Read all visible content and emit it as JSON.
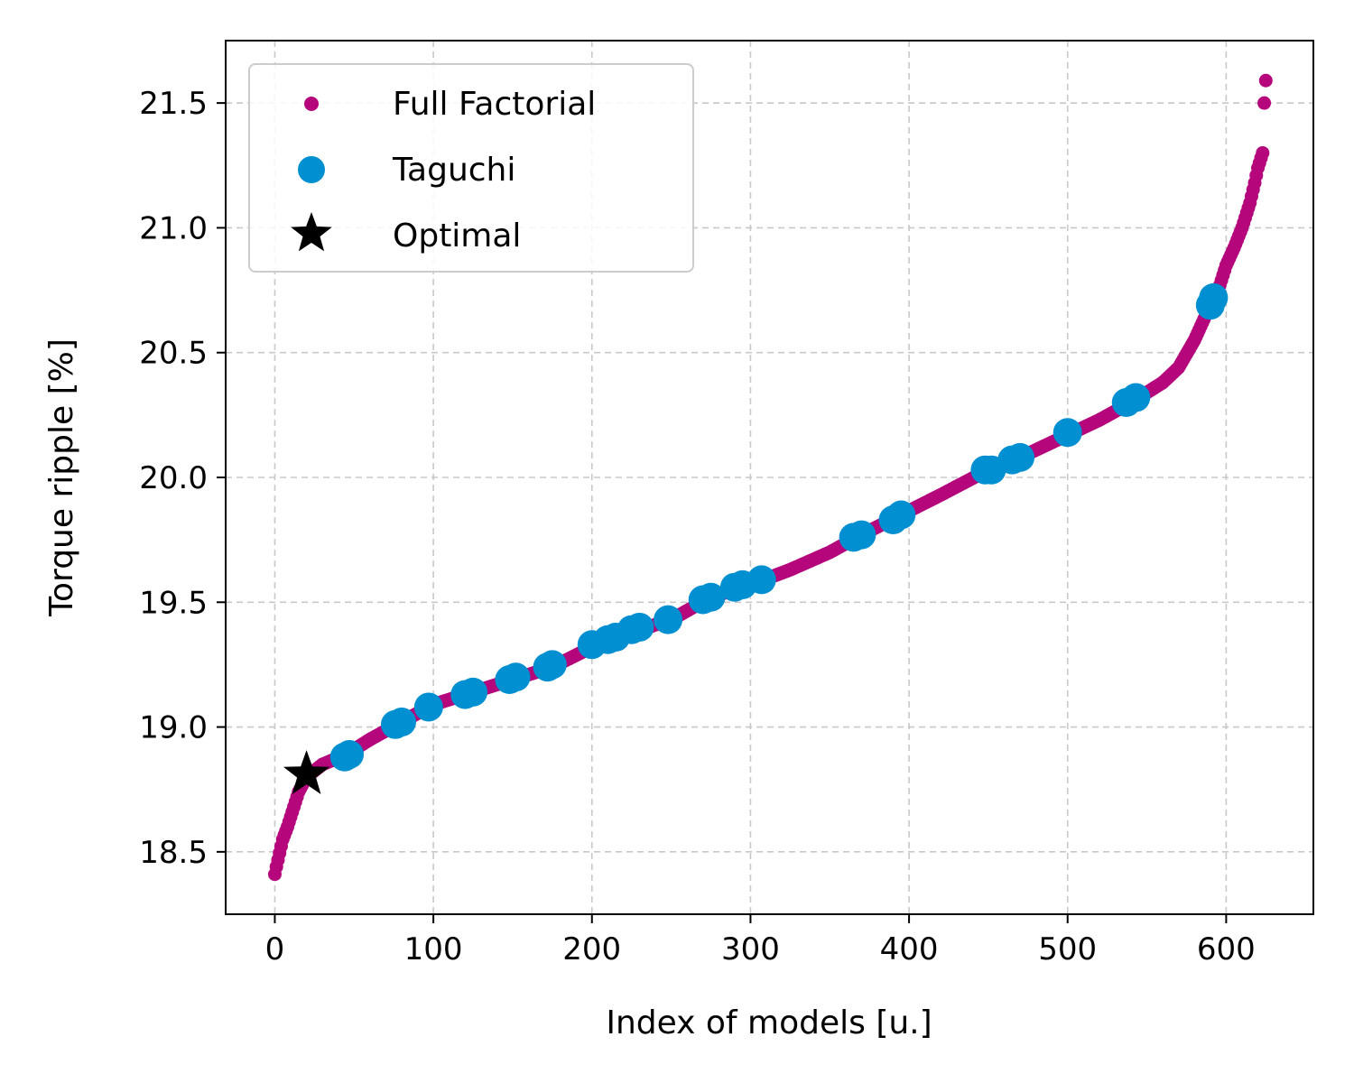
{
  "chart_data": {
    "type": "scatter",
    "xlabel": "Index of models [u.]",
    "ylabel": "Torque ripple [%]",
    "xlim": [
      -31,
      655
    ],
    "ylim": [
      18.25,
      21.75
    ],
    "xticks": [
      0,
      100,
      200,
      300,
      400,
      500,
      600
    ],
    "yticks": [
      18.5,
      19.0,
      19.5,
      20.0,
      20.5,
      21.0,
      21.5
    ],
    "ytick_labels": [
      "18.5",
      "19.0",
      "19.5",
      "20.0",
      "20.5",
      "21.0",
      "21.5"
    ],
    "grid": true,
    "legend_position": "top-left",
    "n_models": 625,
    "full_factorial_curve": [
      [
        0,
        18.41
      ],
      [
        1,
        18.44
      ],
      [
        5,
        18.55
      ],
      [
        8,
        18.6
      ],
      [
        12,
        18.68
      ],
      [
        15,
        18.74
      ],
      [
        20,
        18.8
      ],
      [
        30,
        18.85
      ],
      [
        45,
        18.89
      ],
      [
        60,
        18.95
      ],
      [
        80,
        19.02
      ],
      [
        100,
        19.09
      ],
      [
        125,
        19.14
      ],
      [
        150,
        19.19
      ],
      [
        175,
        19.24
      ],
      [
        200,
        19.32
      ],
      [
        220,
        19.36
      ],
      [
        240,
        19.41
      ],
      [
        250,
        19.43
      ],
      [
        275,
        19.52
      ],
      [
        300,
        19.57
      ],
      [
        325,
        19.63
      ],
      [
        350,
        19.7
      ],
      [
        370,
        19.77
      ],
      [
        395,
        19.85
      ],
      [
        420,
        19.93
      ],
      [
        450,
        20.03
      ],
      [
        470,
        20.08
      ],
      [
        500,
        20.17
      ],
      [
        520,
        20.23
      ],
      [
        540,
        20.3
      ],
      [
        560,
        20.38
      ],
      [
        570,
        20.44
      ],
      [
        580,
        20.55
      ],
      [
        590,
        20.69
      ],
      [
        595,
        20.75
      ],
      [
        600,
        20.85
      ],
      [
        605,
        20.92
      ],
      [
        610,
        21.0
      ],
      [
        615,
        21.1
      ],
      [
        618,
        21.18
      ],
      [
        620,
        21.24
      ],
      [
        623,
        21.3
      ],
      [
        624,
        21.5
      ],
      [
        625,
        21.59
      ]
    ],
    "series": [
      {
        "name": "Full Factorial",
        "color": "#b5067c",
        "marker": "small-dot"
      },
      {
        "name": "Taguchi",
        "color": "#008fd0",
        "marker": "large-dot",
        "points": [
          [
            44,
            18.88
          ],
          [
            47,
            18.89
          ],
          [
            76,
            19.01
          ],
          [
            80,
            19.02
          ],
          [
            97,
            19.08
          ],
          [
            120,
            19.13
          ],
          [
            125,
            19.14
          ],
          [
            148,
            19.19
          ],
          [
            152,
            19.2
          ],
          [
            172,
            19.24
          ],
          [
            175,
            19.25
          ],
          [
            200,
            19.33
          ],
          [
            210,
            19.35
          ],
          [
            215,
            19.36
          ],
          [
            225,
            19.39
          ],
          [
            230,
            19.4
          ],
          [
            248,
            19.43
          ],
          [
            270,
            19.51
          ],
          [
            275,
            19.52
          ],
          [
            290,
            19.56
          ],
          [
            295,
            19.57
          ],
          [
            307,
            19.59
          ],
          [
            365,
            19.76
          ],
          [
            370,
            19.77
          ],
          [
            390,
            19.83
          ],
          [
            395,
            19.85
          ],
          [
            448,
            20.03
          ],
          [
            452,
            20.03
          ],
          [
            465,
            20.07
          ],
          [
            470,
            20.08
          ],
          [
            500,
            20.18
          ],
          [
            537,
            20.3
          ],
          [
            543,
            20.32
          ],
          [
            590,
            20.69
          ],
          [
            592,
            20.72
          ]
        ]
      },
      {
        "name": "Optimal",
        "color": "#000000",
        "marker": "star",
        "points": [
          [
            20,
            18.81
          ]
        ]
      }
    ]
  }
}
